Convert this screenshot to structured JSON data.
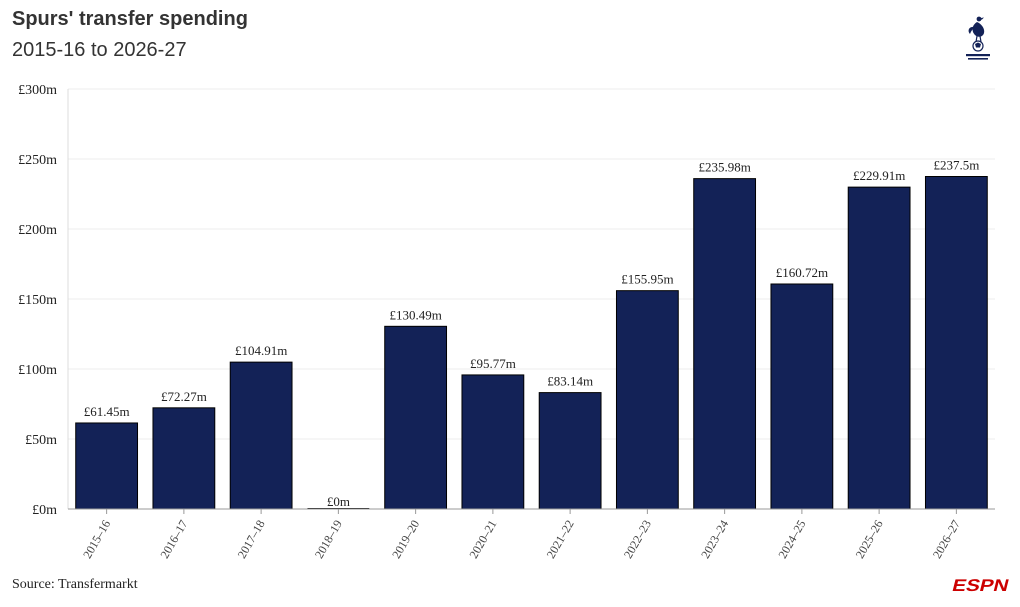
{
  "header": {
    "title": "Spurs' transfer spending",
    "subtitle": "2015-16 to 2026-27"
  },
  "footer": {
    "source": "Source: Transfermarkt",
    "brand_logo_text": "ESPN"
  },
  "logos": {
    "club_icon": "tottenham-cockerel-icon"
  },
  "colors": {
    "bar": "#132257",
    "brand": "#cc0000",
    "grid": "#ececec",
    "text": "#222222"
  },
  "chart_data": {
    "type": "bar",
    "title": "",
    "xlabel": "",
    "ylabel": "",
    "ylim": [
      0,
      300
    ],
    "y_ticks": [
      0,
      50,
      100,
      150,
      200,
      250,
      300
    ],
    "y_tick_labels": [
      "£0m",
      "£50m",
      "£100m",
      "£150m",
      "£200m",
      "£250m",
      "£300m"
    ],
    "categories": [
      "2015–16",
      "2016–17",
      "2017–18",
      "2018–19",
      "2019–20",
      "2020–21",
      "2021–22",
      "2022–23",
      "2023–24",
      "2024–25",
      "2025–26",
      "2026–27"
    ],
    "values": [
      61.45,
      72.27,
      104.91,
      0,
      130.49,
      95.77,
      83.14,
      155.95,
      235.98,
      160.72,
      229.91,
      237.5
    ],
    "data_labels": [
      "£61.45m",
      "£72.27m",
      "£104.91m",
      "£0m",
      "£130.49m",
      "£95.77m",
      "£83.14m",
      "£155.95m",
      "£235.98m",
      "£160.72m",
      "£229.91m",
      "£237.5m"
    ],
    "grid": true,
    "legend": "none"
  }
}
